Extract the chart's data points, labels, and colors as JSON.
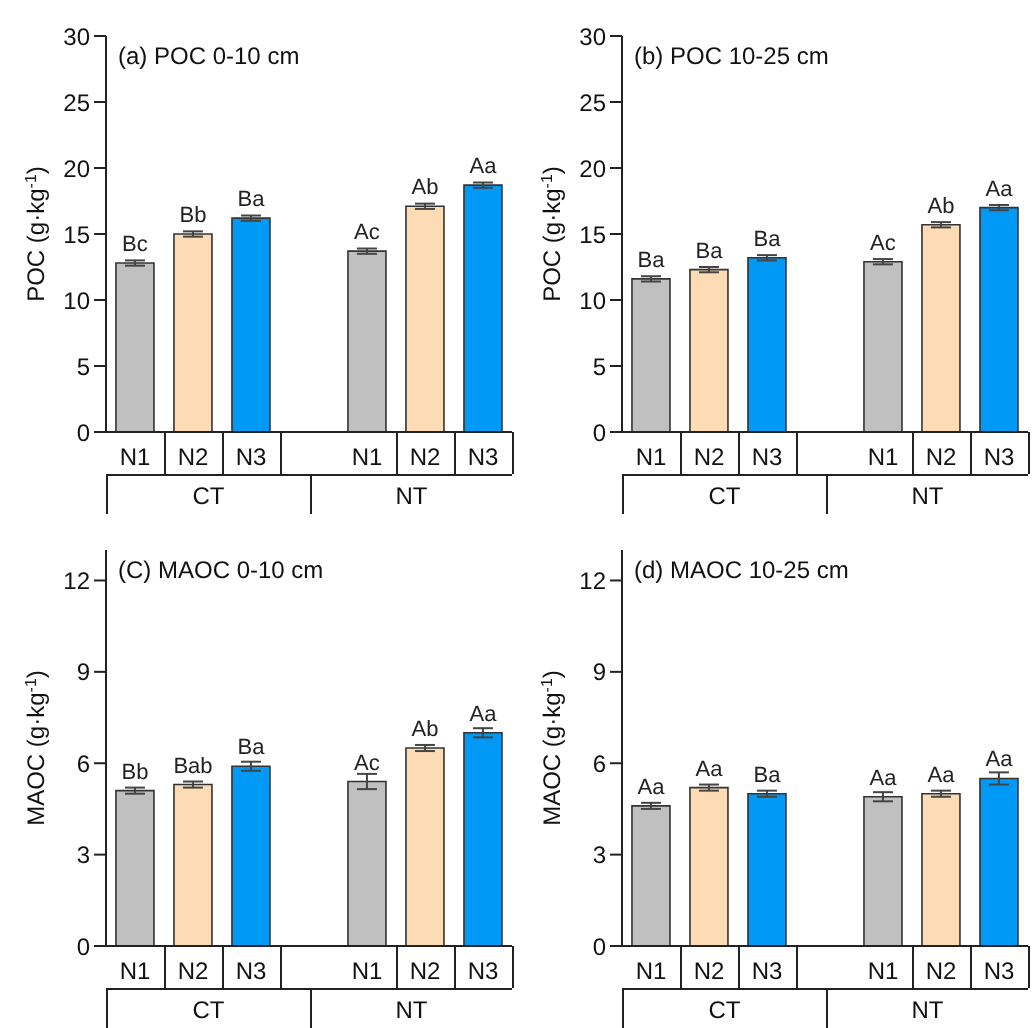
{
  "chart_data": [
    {
      "type": "bar",
      "title": "(a) POC 0-10 cm",
      "ylabel": "POC (g·kg$^{-1}$)",
      "categories": [
        "N1",
        "N2",
        "N3",
        "N1",
        "N2",
        "N3"
      ],
      "annotations": [
        "CT",
        "NT"
      ],
      "values": [
        12.8,
        15.0,
        16.2,
        13.7,
        17.1,
        18.7
      ],
      "errors": [
        0.2,
        0.2,
        0.2,
        0.2,
        0.2,
        0.2
      ],
      "colors": [
        "#c0c0c0",
        "#fddcb5",
        "#0099f5",
        "#c0c0c0",
        "#fddcb5",
        "#0099f5"
      ],
      "value_labels": [
        "Bc",
        "Bb",
        "Ba",
        "Ac",
        "Ab",
        "Aa"
      ],
      "ylim": [
        0,
        30
      ],
      "yticks": [
        0,
        5,
        10,
        15,
        20,
        25,
        30
      ],
      "grid": false,
      "legend": false
    },
    {
      "type": "bar",
      "title": "(b) POC 10-25 cm",
      "ylabel": "POC (g·kg$^{-1}$)",
      "categories": [
        "N1",
        "N2",
        "N3",
        "N1",
        "N2",
        "N3"
      ],
      "annotations": [
        "CT",
        "NT"
      ],
      "values": [
        11.6,
        12.3,
        13.2,
        12.9,
        15.7,
        17.0
      ],
      "errors": [
        0.2,
        0.2,
        0.2,
        0.2,
        0.2,
        0.2
      ],
      "colors": [
        "#c0c0c0",
        "#fddcb5",
        "#0099f5",
        "#c0c0c0",
        "#fddcb5",
        "#0099f5"
      ],
      "value_labels": [
        "Ba",
        "Ba",
        "Ba",
        "Ac",
        "Ab",
        "Aa"
      ],
      "ylim": [
        0,
        30
      ],
      "yticks": [
        0,
        5,
        10,
        15,
        20,
        25,
        30
      ],
      "grid": false,
      "legend": false
    },
    {
      "type": "bar",
      "title": "(C) MAOC 0-10 cm",
      "ylabel": "MAOC (g·kg$^{-1}$)",
      "categories": [
        "N1",
        "N2",
        "N3",
        "N1",
        "N2",
        "N3"
      ],
      "annotations": [
        "CT",
        "NT"
      ],
      "values": [
        5.1,
        5.3,
        5.9,
        5.4,
        6.5,
        7.0
      ],
      "errors": [
        0.1,
        0.1,
        0.15,
        0.25,
        0.1,
        0.15
      ],
      "colors": [
        "#c0c0c0",
        "#fddcb5",
        "#0099f5",
        "#c0c0c0",
        "#fddcb5",
        "#0099f5"
      ],
      "value_labels": [
        "Bb",
        "Bab",
        "Ba",
        "Ac",
        "Ab",
        "Aa"
      ],
      "ylim": [
        0,
        13
      ],
      "yticks": [
        0,
        3,
        6,
        9,
        12
      ],
      "grid": false,
      "legend": false
    },
    {
      "type": "bar",
      "title": "(d) MAOC 10-25 cm",
      "ylabel": "MAOC (g·kg$^{-1}$)",
      "categories": [
        "N1",
        "N2",
        "N3",
        "N1",
        "N2",
        "N3"
      ],
      "annotations": [
        "CT",
        "NT"
      ],
      "values": [
        4.6,
        5.2,
        5.0,
        4.9,
        5.0,
        5.5
      ],
      "errors": [
        0.1,
        0.1,
        0.1,
        0.15,
        0.1,
        0.2
      ],
      "colors": [
        "#c0c0c0",
        "#fddcb5",
        "#0099f5",
        "#c0c0c0",
        "#fddcb5",
        "#0099f5"
      ],
      "value_labels": [
        "Aa",
        "Aa",
        "Ba",
        "Aa",
        "Aa",
        "Aa"
      ],
      "ylim": [
        0,
        13
      ],
      "yticks": [
        0,
        3,
        6,
        9,
        12
      ],
      "grid": false,
      "legend": false
    }
  ]
}
